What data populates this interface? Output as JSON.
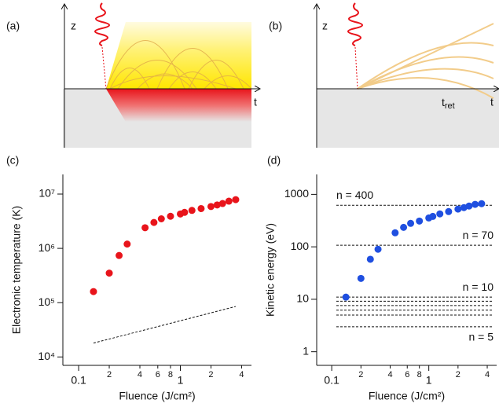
{
  "diagrams": {
    "a": {
      "label": "(a)",
      "z": "z",
      "t": "t"
    },
    "b": {
      "label": "(b)",
      "z": "z",
      "t": "t",
      "t_ret": {
        "main": "t",
        "sub": "ret"
      }
    }
  },
  "chart_data": [
    {
      "type": "scatter",
      "label": "(c)",
      "x_label": "Fluence (J/cm²)",
      "y_label": "Electronic temperature (K)",
      "xlog": true,
      "ylog": true,
      "xlim": [
        0.07,
        5
      ],
      "ylim": [
        7000,
        23000000
      ],
      "xticks": [
        0.1,
        {
          "value": 0.2,
          "label": "2"
        },
        {
          "value": 0.4,
          "label": "4"
        },
        {
          "value": 0.6,
          "label": "6"
        },
        {
          "value": 0.8,
          "label": "8"
        },
        1,
        {
          "value": 2,
          "label": "2"
        },
        {
          "value": 4,
          "label": "4"
        }
      ],
      "yticks": [
        {
          "value": 10000,
          "label": "10⁴"
        },
        {
          "value": 100000,
          "label": "10⁵"
        },
        {
          "value": 1000000,
          "label": "10⁶"
        },
        {
          "value": 10000000,
          "label": "10⁷"
        }
      ],
      "x": [
        0.14,
        0.2,
        0.25,
        0.3,
        0.45,
        0.55,
        0.65,
        0.8,
        1.0,
        1.1,
        1.3,
        1.6,
        2.0,
        2.3,
        2.6,
        3.0,
        3.5
      ],
      "series": [
        {
          "color": "#e8141b",
          "values": [
            160000,
            350000,
            740000,
            1200000,
            2400000,
            3000000,
            3500000,
            3900000,
            4300000,
            4600000,
            5000000,
            5400000,
            5900000,
            6300000,
            6700000,
            7400000,
            7900000
          ]
        }
      ],
      "dashed_line": {
        "x": [
          0.14,
          3.5
        ],
        "values": [
          18000,
          85000
        ]
      }
    },
    {
      "type": "scatter",
      "label": "(d)",
      "x_label": "Fluence (J/cm²)",
      "y_label": "Kinetic energy (eV)",
      "xlog": true,
      "ylog": true,
      "xlim": [
        0.07,
        5
      ],
      "ylim": [
        0.55,
        2400
      ],
      "xticks": [
        0.1,
        {
          "value": 0.2,
          "label": "2"
        },
        {
          "value": 0.4,
          "label": "4"
        },
        {
          "value": 0.6,
          "label": "6"
        },
        {
          "value": 0.8,
          "label": "8"
        },
        1,
        {
          "value": 2,
          "label": "2"
        },
        {
          "value": 4,
          "label": "4"
        }
      ],
      "yticks": [
        1,
        10,
        100,
        1000
      ],
      "x": [
        0.14,
        0.2,
        0.25,
        0.3,
        0.45,
        0.55,
        0.65,
        0.8,
        1.0,
        1.1,
        1.3,
        1.6,
        2.0,
        2.3,
        2.6,
        3.0,
        3.5
      ],
      "series": [
        {
          "color": "#1f4fe0",
          "values": [
            11,
            25,
            58,
            90,
            185,
            235,
            280,
            310,
            355,
            380,
            425,
            470,
            525,
            560,
            600,
            645,
            665
          ]
        }
      ],
      "dashed_lines": [
        {
          "value": 620,
          "label": "n = 400"
        },
        {
          "value": 107,
          "label": "n = 70"
        },
        {
          "value": 11,
          "label": "n = 10"
        },
        {
          "value": 9.2
        },
        {
          "value": 7.6
        },
        {
          "value": 6.2
        },
        {
          "value": 5.0
        },
        {
          "value": 3.0,
          "label": "n = 5"
        }
      ]
    }
  ]
}
